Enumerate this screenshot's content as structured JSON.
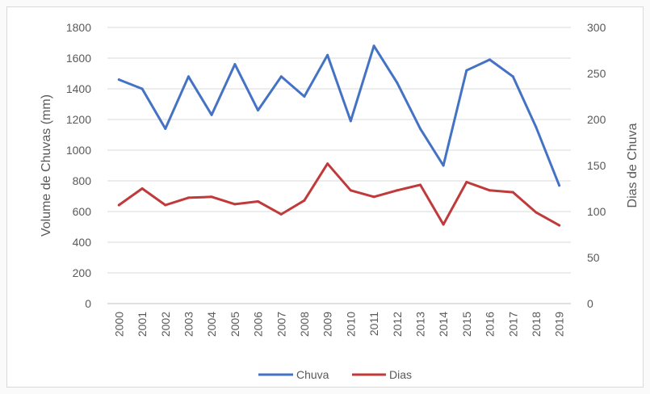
{
  "chart_data": {
    "type": "line",
    "categories": [
      "2000",
      "2001",
      "2002",
      "2003",
      "2004",
      "2005",
      "2006",
      "2007",
      "2008",
      "2009",
      "2010",
      "2011",
      "2012",
      "2013",
      "2014",
      "2015",
      "2016",
      "2017",
      "2018",
      "2019"
    ],
    "series": [
      {
        "name": "Chuva",
        "axis": "left",
        "color": "#4472c4",
        "values": [
          1460,
          1400,
          1140,
          1480,
          1230,
          1560,
          1260,
          1480,
          1350,
          1620,
          1190,
          1680,
          1440,
          1140,
          900,
          1520,
          1590,
          1480,
          1150,
          770
        ]
      },
      {
        "name": "Dias",
        "axis": "right",
        "color": "#c0393b",
        "values": [
          107,
          125,
          107,
          115,
          116,
          108,
          111,
          97,
          112,
          152,
          123,
          116,
          123,
          129,
          86,
          132,
          123,
          121,
          99,
          85
        ]
      }
    ],
    "ylabel": "Volume de Chuvas (mm)",
    "y2label": "Dias de Chuva",
    "ylim": [
      0,
      1800
    ],
    "y2lim": [
      0,
      300
    ],
    "yticks": [
      "0",
      "200",
      "400",
      "600",
      "800",
      "1000",
      "1200",
      "1400",
      "1600",
      "1800"
    ],
    "y2ticks": [
      "0",
      "50",
      "100",
      "150",
      "200",
      "250",
      "300"
    ],
    "grid": "horizontal",
    "legend_position": "bottom"
  }
}
